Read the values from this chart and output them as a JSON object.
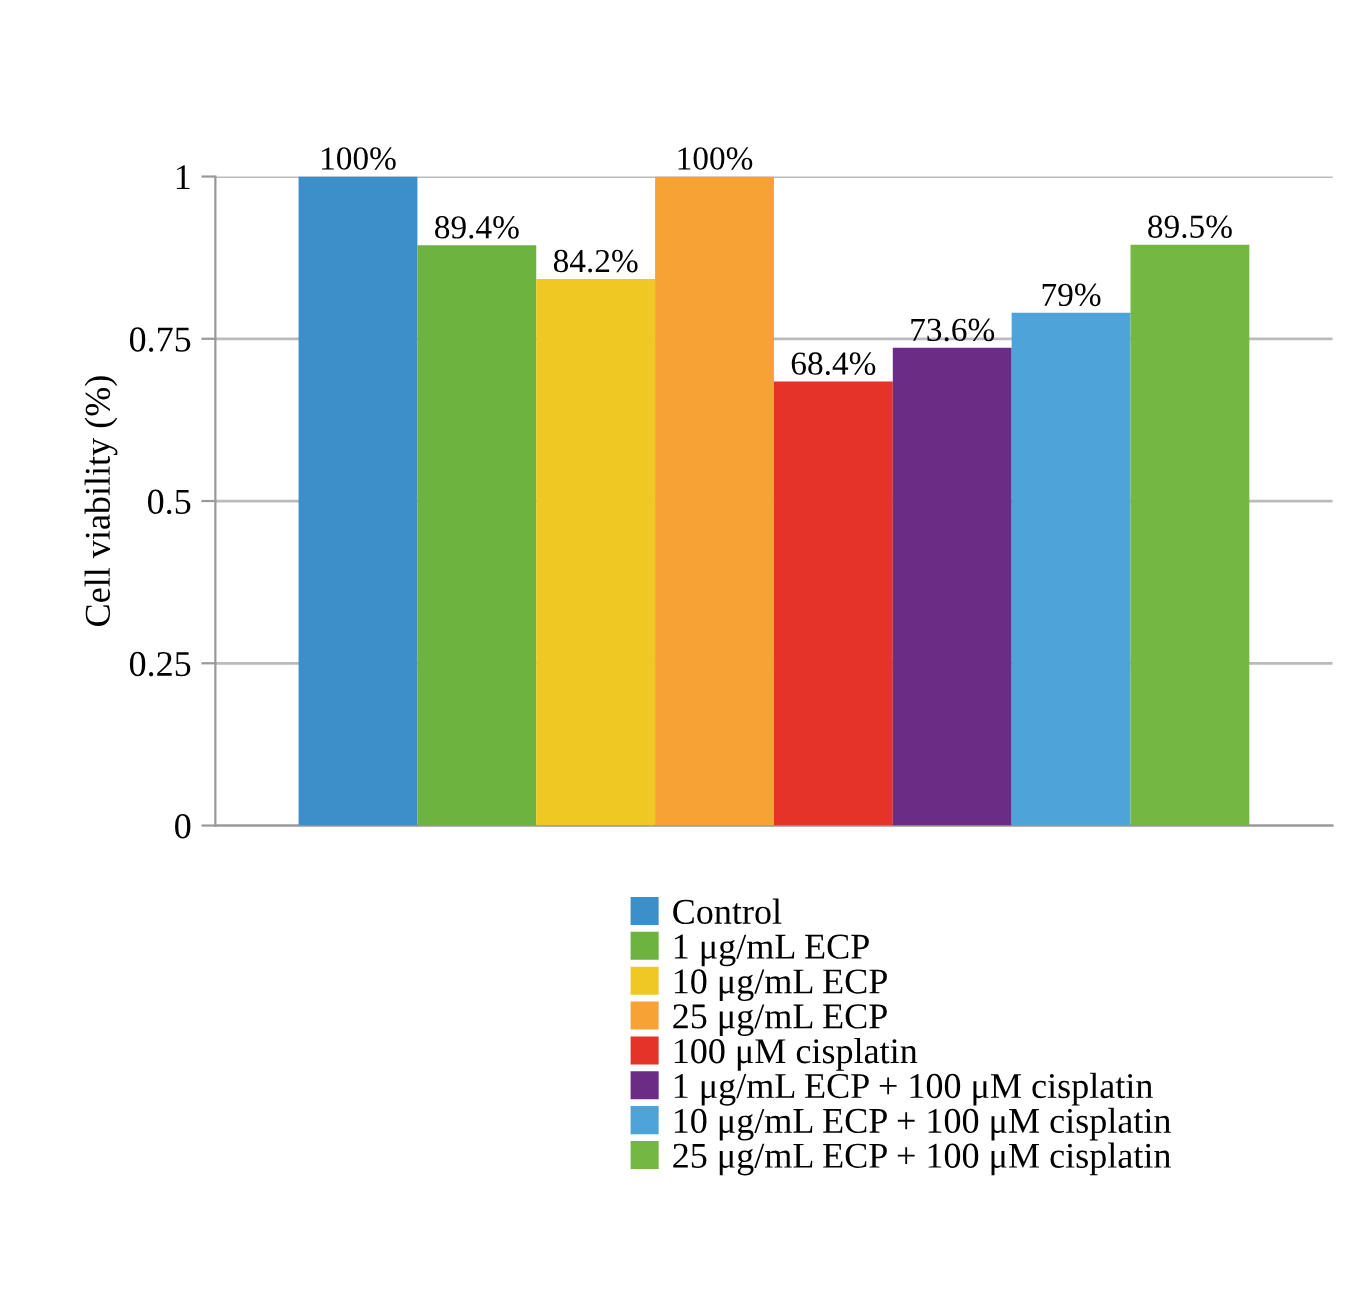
{
  "chart_data": {
    "type": "bar",
    "ylabel": "Cell viability (%)",
    "categories": [
      null
    ],
    "series": [
      {
        "name": "Control",
        "color": "#3d8fc9",
        "values": [
          1
        ],
        "value_labels": [
          "100%"
        ]
      },
      {
        "name": "1 μg/mL ECP",
        "color": "#6cb33f",
        "values": [
          0.894
        ],
        "value_labels": [
          "89.4%"
        ]
      },
      {
        "name": "10 μg/mL ECP",
        "color": "#f0c823",
        "values": [
          0.842
        ],
        "value_labels": [
          "84.2%"
        ]
      },
      {
        "name": "25 μg/mL ECP",
        "color": "#f7a234",
        "values": [
          1
        ],
        "value_labels": [
          "100%"
        ]
      },
      {
        "name": "100 μM cisplatin",
        "color": "#e6332a",
        "values": [
          0.684
        ],
        "value_labels": [
          "68.4%"
        ]
      },
      {
        "name": "1 μg/mL ECP + 100 μM cisplatin",
        "color": "#6b2c85",
        "values": [
          0.736
        ],
        "value_labels": [
          "73.6%"
        ]
      },
      {
        "name": "10 μg/mL ECP + 100 μM cisplatin",
        "color": "#4ea3d8",
        "values": [
          0.79
        ],
        "value_labels": [
          "79%"
        ]
      },
      {
        "name": "25 μg/mL ECP + 100 μM cisplatin",
        "color": "#74b843",
        "values": [
          0.895
        ],
        "value_labels": [
          "89.5%"
        ]
      }
    ],
    "ylim": [
      0,
      1
    ],
    "yticks": [
      0,
      0.25,
      0.5,
      0.75,
      1
    ],
    "grid": "y",
    "legend": "bottom"
  }
}
